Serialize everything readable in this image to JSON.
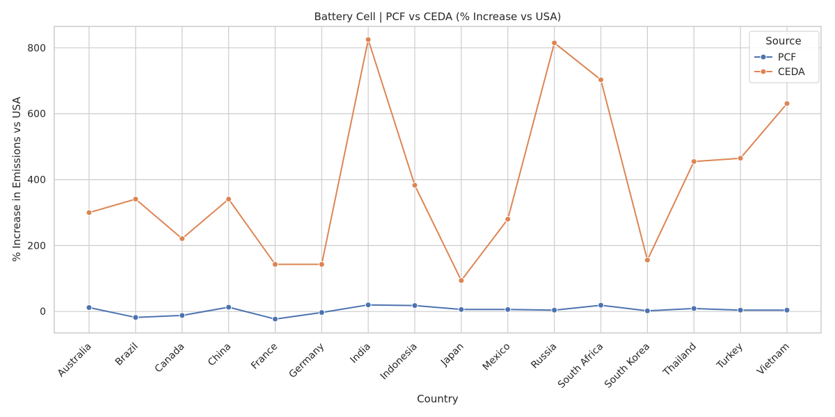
{
  "chart_data": {
    "type": "line",
    "title": "Battery Cell | PCF vs CEDA (% Increase vs USA)",
    "xlabel": "Country",
    "ylabel": "% Increase in Emissions vs USA",
    "categories": [
      "Australia",
      "Brazil",
      "Canada",
      "China",
      "France",
      "Germany",
      "India",
      "Indonesia",
      "Japan",
      "Mexico",
      "Russia",
      "South Africa",
      "South Korea",
      "Thailand",
      "Turkey",
      "Vietnam"
    ],
    "ylim": [
      -65,
      865
    ],
    "yticks": [
      0,
      200,
      400,
      600,
      800
    ],
    "grid": true,
    "legend": {
      "title": "Source",
      "placement": "top-right"
    },
    "series": [
      {
        "name": "PCF",
        "color": "#4c72b0",
        "values": [
          12,
          -18,
          -12,
          13,
          -23,
          -3,
          20,
          18,
          6,
          6,
          4,
          19,
          2,
          9,
          4,
          4
        ]
      },
      {
        "name": "CEDA",
        "color": "#dd8452",
        "values": [
          300,
          341,
          221,
          341,
          143,
          143,
          825,
          383,
          94,
          280,
          815,
          703,
          156,
          455,
          465,
          631
        ]
      }
    ]
  }
}
